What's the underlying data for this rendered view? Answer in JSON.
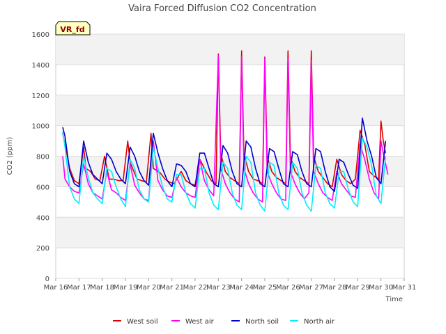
{
  "chart_data": {
    "type": "line",
    "title": "Vaira Forced Diffusion CO2 Concentration",
    "badge": "VR_fd",
    "xlabel": "Time",
    "ylabel": "CO2 (ppm)",
    "ylim": [
      0,
      1600
    ],
    "yticks": [
      0,
      200,
      400,
      600,
      800,
      1000,
      1200,
      1400,
      1600
    ],
    "xlim": [
      16,
      31
    ],
    "xtick_labels": [
      "Mar 16",
      "Mar 17",
      "Mar 18",
      "Mar 19",
      "Mar 20",
      "Mar 21",
      "Mar 22",
      "Mar 23",
      "Mar 24",
      "Mar 25",
      "Mar 26",
      "Mar 27",
      "Mar 28",
      "Mar 29",
      "Mar 30",
      "Mar 31"
    ],
    "grid": true,
    "legend_position": "bottom",
    "series": [
      {
        "name": "West soil",
        "color": "#dd0000",
        "x": [
          16.3,
          16.4,
          16.6,
          16.8,
          17.0,
          17.2,
          17.3,
          17.5,
          17.7,
          17.9,
          18.1,
          18.3,
          18.5,
          18.7,
          18.9,
          19.1,
          19.2,
          19.5,
          19.7,
          19.9,
          20.1,
          20.2,
          20.5,
          20.7,
          20.9,
          21.1,
          21.4,
          21.6,
          21.8,
          22.0,
          22.2,
          22.5,
          22.7,
          22.9,
          23.0,
          23.1,
          23.3,
          23.5,
          23.7,
          23.9,
          24.0,
          24.1,
          24.3,
          24.5,
          24.7,
          24.9,
          25.0,
          25.1,
          25.3,
          25.5,
          25.7,
          25.9,
          26.0,
          26.1,
          26.3,
          26.5,
          26.7,
          26.9,
          27.0,
          27.1,
          27.3,
          27.5,
          27.7,
          27.9,
          28.1,
          28.3,
          28.5,
          28.7,
          28.9,
          29.1,
          29.3,
          29.5,
          29.7,
          29.9,
          30.0,
          30.1,
          30.2
        ],
        "y": [
          950,
          880,
          720,
          640,
          620,
          860,
          720,
          700,
          650,
          640,
          800,
          650,
          650,
          640,
          640,
          900,
          760,
          650,
          640,
          630,
          950,
          720,
          690,
          650,
          630,
          620,
          700,
          640,
          620,
          610,
          780,
          690,
          640,
          620,
          1470,
          820,
          700,
          660,
          640,
          620,
          1490,
          820,
          700,
          650,
          640,
          620,
          1450,
          800,
          700,
          660,
          640,
          620,
          1490,
          800,
          700,
          660,
          640,
          620,
          1490,
          800,
          700,
          660,
          620,
          600,
          780,
          680,
          640,
          620,
          650,
          970,
          880,
          700,
          670,
          650,
          1030,
          900,
          820
        ]
      },
      {
        "name": "West air",
        "color": "#ff00ff",
        "x": [
          16.3,
          16.4,
          16.6,
          16.8,
          17.0,
          17.2,
          17.4,
          17.6,
          17.8,
          18.0,
          18.2,
          18.4,
          18.6,
          18.8,
          19.0,
          19.2,
          19.4,
          19.6,
          19.8,
          20.0,
          20.2,
          20.4,
          20.6,
          20.8,
          21.0,
          21.2,
          21.4,
          21.6,
          21.8,
          22.0,
          22.2,
          22.4,
          22.6,
          22.8,
          23.0,
          23.1,
          23.3,
          23.5,
          23.7,
          23.9,
          24.0,
          24.1,
          24.3,
          24.5,
          24.7,
          24.9,
          25.0,
          25.1,
          25.3,
          25.5,
          25.7,
          25.9,
          26.0,
          26.1,
          26.3,
          26.5,
          26.7,
          26.9,
          27.0,
          27.1,
          27.3,
          27.5,
          27.7,
          27.9,
          28.1,
          28.3,
          28.5,
          28.7,
          28.9,
          29.1,
          29.3,
          29.5,
          29.7,
          29.9,
          30.0,
          30.1,
          30.3
        ],
        "y": [
          800,
          650,
          600,
          570,
          560,
          750,
          620,
          560,
          540,
          520,
          700,
          580,
          560,
          530,
          510,
          750,
          610,
          560,
          520,
          510,
          900,
          640,
          580,
          540,
          530,
          660,
          600,
          560,
          540,
          530,
          780,
          640,
          580,
          540,
          1460,
          720,
          620,
          560,
          520,
          500,
          1450,
          720,
          620,
          560,
          520,
          500,
          1440,
          700,
          620,
          560,
          520,
          510,
          1440,
          700,
          620,
          560,
          520,
          560,
          1430,
          700,
          620,
          560,
          530,
          510,
          700,
          620,
          580,
          540,
          530,
          880,
          780,
          650,
          560,
          520,
          900,
          820,
          680
        ]
      },
      {
        "name": "North soil",
        "color": "#0000cc",
        "x": [
          16.3,
          16.4,
          16.6,
          16.8,
          17.0,
          17.2,
          17.4,
          17.6,
          17.8,
          18.0,
          18.2,
          18.4,
          18.6,
          18.8,
          19.0,
          19.2,
          19.4,
          19.6,
          19.8,
          20.0,
          20.2,
          20.4,
          20.6,
          20.8,
          21.0,
          21.2,
          21.4,
          21.6,
          21.8,
          22.0,
          22.2,
          22.4,
          22.6,
          22.8,
          23.0,
          23.2,
          23.4,
          23.6,
          23.8,
          24.0,
          24.2,
          24.4,
          24.6,
          24.8,
          25.0,
          25.2,
          25.4,
          25.6,
          25.8,
          26.0,
          26.2,
          26.4,
          26.6,
          26.8,
          27.0,
          27.2,
          27.4,
          27.6,
          27.8,
          28.0,
          28.2,
          28.4,
          28.6,
          28.8,
          29.0,
          29.2,
          29.4,
          29.6,
          29.8,
          30.0,
          30.2
        ],
        "y": [
          990,
          930,
          700,
          620,
          600,
          900,
          760,
          680,
          650,
          620,
          820,
          780,
          700,
          650,
          620,
          860,
          800,
          700,
          640,
          610,
          950,
          820,
          720,
          640,
          600,
          750,
          740,
          700,
          620,
          600,
          820,
          820,
          720,
          620,
          600,
          870,
          820,
          700,
          620,
          600,
          900,
          860,
          720,
          620,
          600,
          850,
          830,
          720,
          620,
          600,
          830,
          810,
          700,
          620,
          600,
          850,
          830,
          700,
          600,
          570,
          780,
          760,
          680,
          610,
          590,
          1050,
          900,
          800,
          660,
          620,
          900
        ]
      },
      {
        "name": "North air",
        "color": "#00eeff",
        "x": [
          16.3,
          16.4,
          16.6,
          16.8,
          17.0,
          17.2,
          17.4,
          17.6,
          17.8,
          18.0,
          18.2,
          18.4,
          18.6,
          18.8,
          19.0,
          19.2,
          19.4,
          19.6,
          19.8,
          20.0,
          20.2,
          20.4,
          20.6,
          20.8,
          21.0,
          21.2,
          21.4,
          21.6,
          21.8,
          22.0,
          22.2,
          22.4,
          22.6,
          22.8,
          23.0,
          23.2,
          23.4,
          23.6,
          23.8,
          24.0,
          24.2,
          24.4,
          24.6,
          24.8,
          25.0,
          25.2,
          25.4,
          25.6,
          25.8,
          26.0,
          26.2,
          26.4,
          26.6,
          26.8,
          27.0,
          27.2,
          27.4,
          27.6,
          27.8,
          28.0,
          28.2,
          28.4,
          28.6,
          28.8,
          29.0,
          29.2,
          29.4,
          29.6,
          29.8,
          30.0,
          30.2
        ],
        "y": [
          960,
          860,
          600,
          520,
          490,
          800,
          660,
          560,
          520,
          490,
          720,
          700,
          600,
          520,
          470,
          780,
          720,
          580,
          520,
          500,
          860,
          720,
          600,
          520,
          500,
          680,
          680,
          560,
          490,
          460,
          720,
          720,
          560,
          480,
          450,
          760,
          720,
          560,
          480,
          450,
          800,
          760,
          560,
          480,
          440,
          760,
          740,
          560,
          480,
          450,
          760,
          720,
          560,
          480,
          440,
          740,
          720,
          560,
          490,
          460,
          700,
          700,
          580,
          500,
          470,
          920,
          860,
          740,
          540,
          490,
          800
        ]
      }
    ]
  }
}
